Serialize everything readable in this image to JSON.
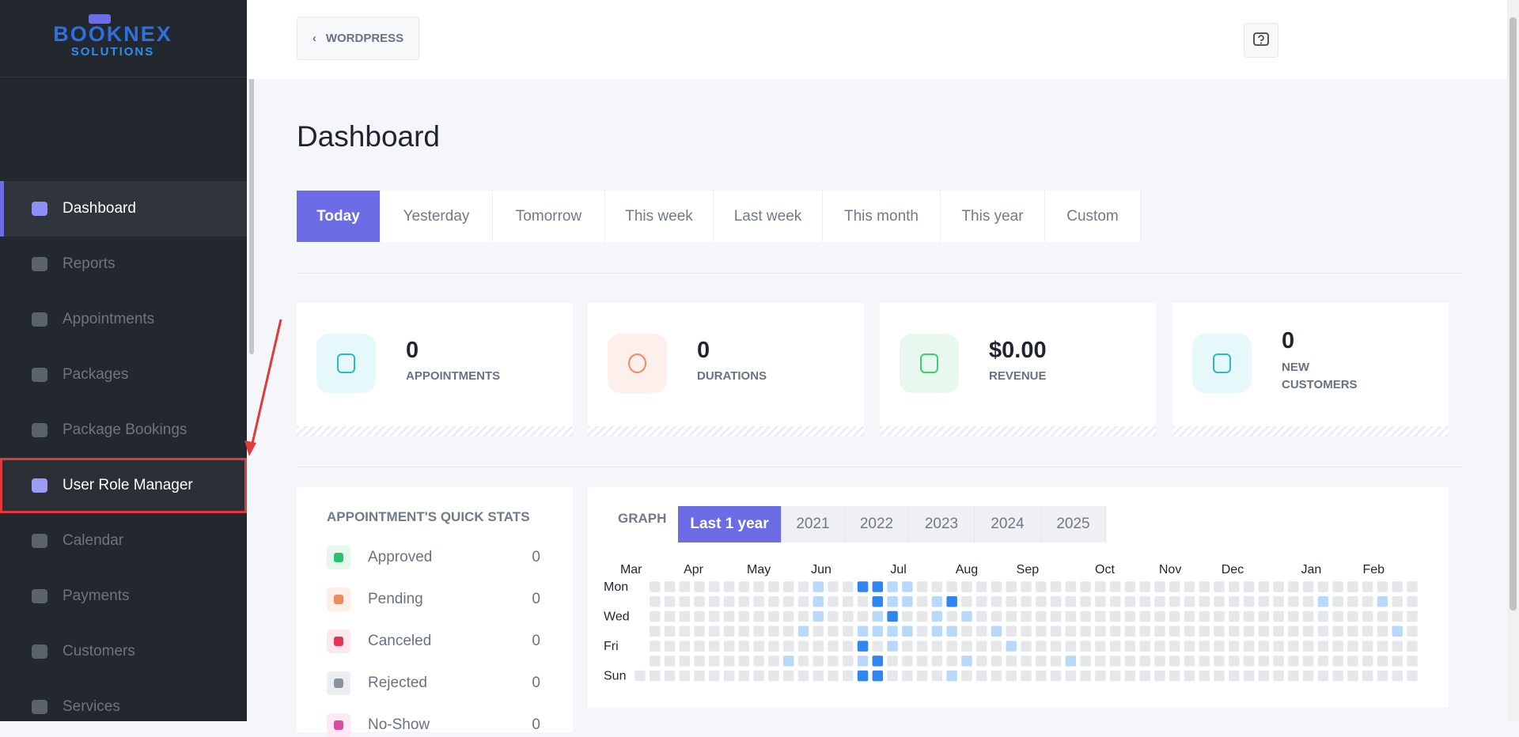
{
  "logo": {
    "name": "BOOKNEX",
    "tagline": "SOLUTIONS"
  },
  "sidebar": {
    "items": [
      "Dashboard",
      "Reports",
      "Appointments",
      "Packages",
      "Package Bookings",
      "User Role Manager",
      "Calendar",
      "Payments",
      "Customers",
      "Services"
    ],
    "active_index": 0,
    "highlighted_index": 5
  },
  "topbar": {
    "back_button": "WORDPRESS"
  },
  "page_title": "Dashboard",
  "date_tabs": {
    "items": [
      "Today",
      "Yesterday",
      "Tomorrow",
      "This week",
      "Last week",
      "This month",
      "This year",
      "Custom"
    ],
    "selected_index": 0
  },
  "stats": [
    {
      "value": 0,
      "label": "APPOINTMENTS"
    },
    {
      "value": 0,
      "label": "DURATIONS"
    },
    {
      "value": "$0.00",
      "label": "REVENUE"
    },
    {
      "value": 0,
      "label": "NEW CUSTOMERS"
    }
  ],
  "quick_stats": {
    "title": "APPOINTMENT'S QUICK STATS",
    "rows": [
      {
        "label": "Approved",
        "count": 0
      },
      {
        "label": "Pending",
        "count": 0
      },
      {
        "label": "Canceled",
        "count": 0
      },
      {
        "label": "Rejected",
        "count": 0
      },
      {
        "label": "No-Show",
        "count": 0
      }
    ]
  },
  "graph": {
    "title": "GRAPH",
    "tabs": [
      "Last 1 year",
      "2021",
      "2022",
      "2023",
      "2024",
      "2025"
    ],
    "selected_index": 0,
    "months": [
      "Mar",
      "Apr",
      "May",
      "Jun",
      "Jul",
      "Aug",
      "Sep",
      "Oct",
      "Nov",
      "Dec",
      "Jan",
      "Feb"
    ],
    "day_labels": [
      "Mon",
      "Wed",
      "Fri",
      "Sun"
    ],
    "levels": [
      [
        null,
        0,
        0,
        0,
        0,
        0,
        0,
        0,
        0,
        0,
        0,
        0,
        1,
        0,
        0,
        2,
        2,
        1,
        1,
        0,
        0,
        0,
        0,
        0,
        0,
        0,
        0,
        0,
        0,
        0,
        0,
        0,
        0,
        0,
        0,
        0,
        0,
        0,
        0,
        0,
        0,
        0,
        0,
        0,
        0,
        0,
        0,
        0,
        0,
        0,
        0,
        0,
        0
      ],
      [
        null,
        0,
        0,
        0,
        0,
        0,
        0,
        0,
        0,
        0,
        0,
        0,
        1,
        0,
        0,
        0,
        2,
        1,
        1,
        0,
        1,
        2,
        0,
        0,
        0,
        0,
        0,
        0,
        0,
        0,
        0,
        0,
        0,
        0,
        0,
        0,
        0,
        0,
        0,
        0,
        0,
        0,
        0,
        0,
        0,
        0,
        1,
        0,
        0,
        0,
        1,
        0,
        0
      ],
      [
        null,
        0,
        0,
        0,
        0,
        0,
        0,
        0,
        0,
        0,
        0,
        0,
        1,
        0,
        0,
        0,
        1,
        2,
        0,
        0,
        1,
        0,
        1,
        0,
        0,
        0,
        0,
        0,
        0,
        0,
        0,
        0,
        0,
        0,
        0,
        0,
        0,
        0,
        0,
        0,
        0,
        0,
        0,
        0,
        0,
        0,
        0,
        0,
        0,
        0,
        0,
        0,
        0
      ],
      [
        null,
        0,
        0,
        0,
        0,
        0,
        0,
        0,
        0,
        0,
        0,
        1,
        0,
        0,
        0,
        1,
        1,
        1,
        1,
        0,
        1,
        1,
        0,
        0,
        1,
        0,
        0,
        0,
        0,
        0,
        0,
        0,
        0,
        0,
        0,
        0,
        0,
        0,
        0,
        0,
        0,
        0,
        0,
        0,
        0,
        0,
        0,
        0,
        0,
        0,
        0,
        1,
        0
      ],
      [
        null,
        0,
        0,
        0,
        0,
        0,
        0,
        0,
        0,
        0,
        0,
        0,
        0,
        0,
        0,
        2,
        0,
        1,
        0,
        0,
        0,
        0,
        0,
        0,
        0,
        1,
        0,
        0,
        0,
        0,
        0,
        0,
        0,
        0,
        0,
        0,
        0,
        0,
        0,
        0,
        0,
        0,
        0,
        0,
        0,
        0,
        0,
        0,
        0,
        0,
        0,
        0,
        0
      ],
      [
        null,
        0,
        0,
        0,
        0,
        0,
        0,
        0,
        0,
        0,
        1,
        0,
        0,
        0,
        0,
        1,
        2,
        0,
        0,
        0,
        0,
        0,
        1,
        0,
        0,
        0,
        0,
        0,
        0,
        1,
        0,
        0,
        0,
        0,
        0,
        0,
        0,
        0,
        0,
        0,
        0,
        0,
        0,
        0,
        0,
        0,
        0,
        0,
        0,
        0,
        0,
        0,
        0
      ],
      [
        0,
        0,
        0,
        0,
        0,
        0,
        0,
        0,
        0,
        0,
        0,
        0,
        0,
        0,
        0,
        2,
        2,
        0,
        0,
        0,
        0,
        1,
        0,
        0,
        0,
        0,
        0,
        0,
        0,
        0,
        0,
        0,
        0,
        0,
        0,
        0,
        0,
        0,
        0,
        0,
        0,
        0,
        0,
        0,
        0,
        0,
        0,
        0,
        0,
        0,
        0,
        0,
        0
      ]
    ]
  }
}
